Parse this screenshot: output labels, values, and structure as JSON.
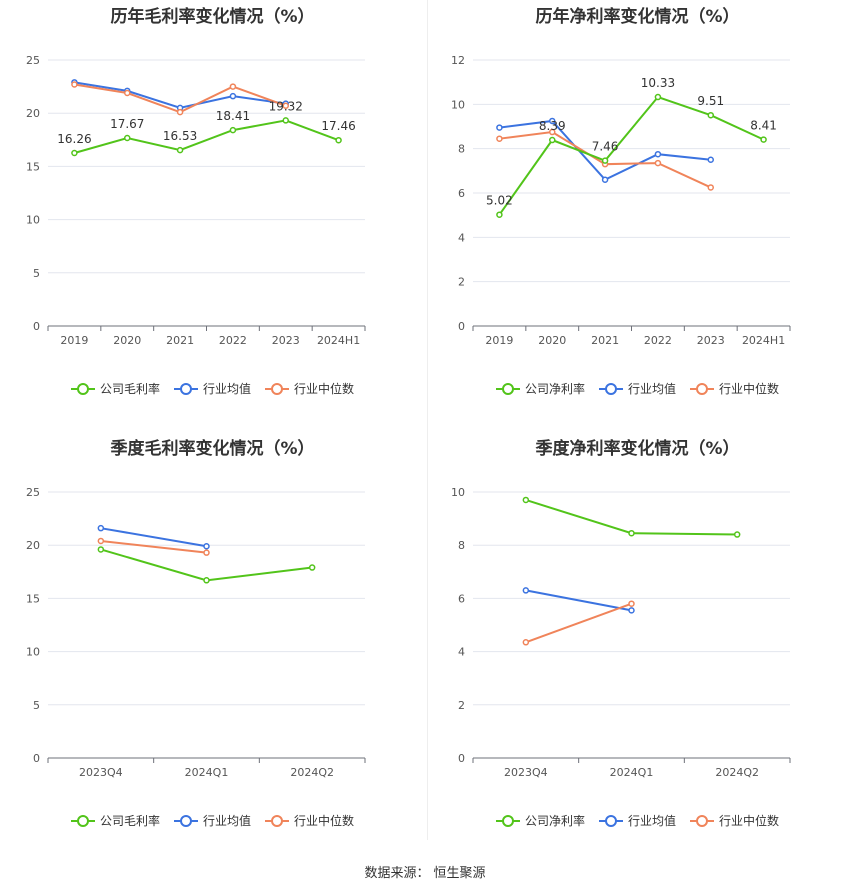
{
  "source": {
    "label": "数据来源：",
    "value": "恒生聚源"
  },
  "colors": {
    "company": "#52c41a",
    "avg": "#3b73e0",
    "median": "#f0845a",
    "grid": "#e3e6ee",
    "axis": "#6e7079",
    "text": "#555555"
  },
  "chart_data": [
    {
      "id": "annual-gross",
      "type": "line",
      "title": "历年毛利率变化情况（%）",
      "categories": [
        "2019",
        "2020",
        "2021",
        "2022",
        "2023",
        "2024H1"
      ],
      "ylim": [
        0,
        25
      ],
      "yticks": [
        0,
        5,
        10,
        15,
        20,
        25
      ],
      "series": [
        {
          "name": "公司毛利率",
          "key": "company",
          "values": [
            16.26,
            17.67,
            16.53,
            18.41,
            19.32,
            17.46
          ],
          "labels": [
            "16.26",
            "17.67",
            "16.53",
            "18.41",
            "19.32",
            "17.46"
          ]
        },
        {
          "name": "行业均值",
          "key": "avg",
          "values": [
            22.9,
            22.1,
            20.5,
            21.6,
            20.9,
            null
          ]
        },
        {
          "name": "行业中位数",
          "key": "median",
          "values": [
            22.7,
            21.9,
            20.1,
            22.5,
            20.7,
            null
          ]
        }
      ]
    },
    {
      "id": "annual-net",
      "type": "line",
      "title": "历年净利率变化情况（%）",
      "categories": [
        "2019",
        "2020",
        "2021",
        "2022",
        "2023",
        "2024H1"
      ],
      "ylim": [
        0,
        12
      ],
      "yticks": [
        0,
        2,
        4,
        6,
        8,
        10,
        12
      ],
      "series": [
        {
          "name": "公司净利率",
          "key": "company",
          "values": [
            5.02,
            8.39,
            7.46,
            10.33,
            9.51,
            8.41
          ],
          "labels": [
            "5.02",
            "8.39",
            "7.46",
            "10.33",
            "9.51",
            "8.41"
          ]
        },
        {
          "name": "行业均值",
          "key": "avg",
          "values": [
            8.95,
            9.25,
            6.6,
            7.75,
            7.5,
            null
          ]
        },
        {
          "name": "行业中位数",
          "key": "median",
          "values": [
            8.45,
            8.75,
            7.3,
            7.35,
            6.25,
            null
          ]
        }
      ]
    },
    {
      "id": "quarter-gross",
      "type": "line",
      "title": "季度毛利率变化情况（%）",
      "categories": [
        "2023Q4",
        "2024Q1",
        "2024Q2"
      ],
      "ylim": [
        0,
        25
      ],
      "yticks": [
        0,
        5,
        10,
        15,
        20,
        25
      ],
      "series": [
        {
          "name": "公司毛利率",
          "key": "company",
          "values": [
            19.6,
            16.7,
            17.9
          ]
        },
        {
          "name": "行业均值",
          "key": "avg",
          "values": [
            21.6,
            19.9,
            null
          ]
        },
        {
          "name": "行业中位数",
          "key": "median",
          "values": [
            20.4,
            19.3,
            null
          ]
        }
      ]
    },
    {
      "id": "quarter-net",
      "type": "line",
      "title": "季度净利率变化情况（%）",
      "categories": [
        "2023Q4",
        "2024Q1",
        "2024Q2"
      ],
      "ylim": [
        0,
        10
      ],
      "yticks": [
        0,
        2,
        4,
        6,
        8,
        10
      ],
      "series": [
        {
          "name": "公司净利率",
          "key": "company",
          "values": [
            9.7,
            8.45,
            8.4
          ]
        },
        {
          "name": "行业均值",
          "key": "avg",
          "values": [
            6.3,
            5.55,
            null
          ]
        },
        {
          "name": "行业中位数",
          "key": "median",
          "values": [
            4.35,
            5.8,
            null
          ]
        }
      ]
    }
  ]
}
